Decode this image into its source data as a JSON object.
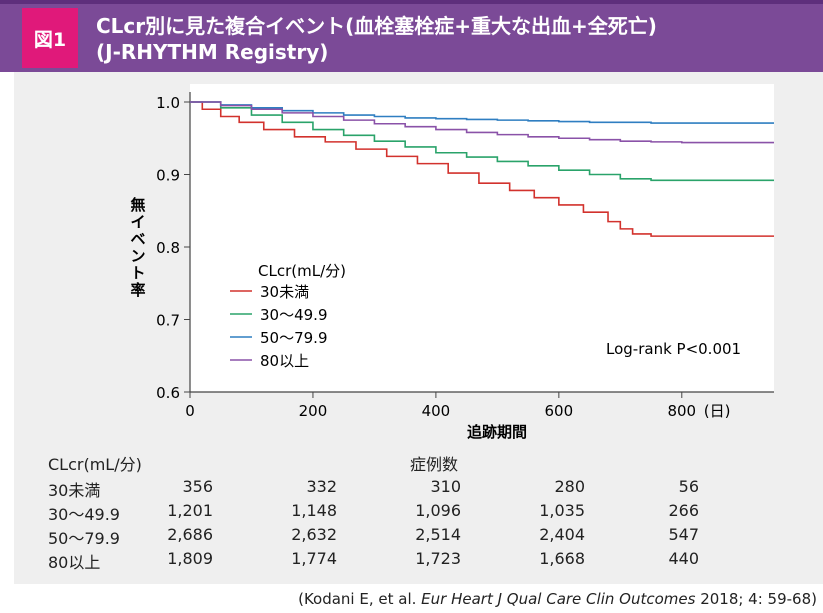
{
  "header": {
    "badge": "図1",
    "title_line1": "CLcr別に見た複合イベント(血栓塞栓症+重大な出血+全死亡)",
    "title_line2": "(J-RHYTHM Registry)"
  },
  "chart_data": {
    "type": "line",
    "xlabel": "追跡期間",
    "ylabel": "無イベント率",
    "x_unit": "(日)",
    "xlim": [
      0,
      950
    ],
    "ylim": [
      0.6,
      1.0
    ],
    "x_ticks": [
      0,
      200,
      400,
      600,
      800
    ],
    "y_ticks": [
      0.6,
      0.7,
      0.8,
      0.9,
      1.0
    ],
    "y_tick_labels": [
      "0.6",
      "0.7",
      "0.8",
      "0.9",
      "1.0"
    ],
    "legend_title": "CLcr(mL/分)",
    "annotation": "Log-rank P<0.001",
    "series": [
      {
        "name": "30未満",
        "color": "#d2322d",
        "x": [
          0,
          20,
          50,
          80,
          120,
          170,
          220,
          270,
          320,
          370,
          420,
          470,
          520,
          560,
          600,
          640,
          680,
          700,
          720,
          750,
          800,
          850,
          900,
          950
        ],
        "y": [
          1.0,
          0.99,
          0.98,
          0.972,
          0.962,
          0.952,
          0.945,
          0.935,
          0.925,
          0.915,
          0.902,
          0.888,
          0.878,
          0.868,
          0.858,
          0.848,
          0.835,
          0.825,
          0.818,
          0.815,
          0.815,
          0.815,
          0.815,
          0.815
        ]
      },
      {
        "name": "30〜49.9",
        "color": "#2aa36a",
        "x": [
          0,
          50,
          100,
          150,
          200,
          250,
          300,
          350,
          400,
          450,
          500,
          550,
          600,
          650,
          700,
          750,
          800,
          850,
          900,
          950
        ],
        "y": [
          1.0,
          0.992,
          0.982,
          0.972,
          0.962,
          0.954,
          0.946,
          0.938,
          0.93,
          0.924,
          0.918,
          0.912,
          0.906,
          0.9,
          0.894,
          0.892,
          0.892,
          0.892,
          0.892,
          0.892
        ]
      },
      {
        "name": "50〜79.9",
        "color": "#2f7ec1",
        "x": [
          0,
          50,
          100,
          150,
          200,
          250,
          300,
          350,
          400,
          450,
          500,
          550,
          600,
          650,
          700,
          750,
          800,
          850,
          900,
          950
        ],
        "y": [
          1.0,
          0.996,
          0.992,
          0.988,
          0.985,
          0.982,
          0.98,
          0.978,
          0.977,
          0.976,
          0.975,
          0.974,
          0.973,
          0.972,
          0.972,
          0.971,
          0.971,
          0.971,
          0.971,
          0.971
        ]
      },
      {
        "name": "80以上",
        "color": "#8a52a8",
        "x": [
          0,
          50,
          100,
          150,
          200,
          250,
          300,
          350,
          400,
          450,
          500,
          550,
          600,
          650,
          700,
          750,
          800,
          850,
          900,
          950
        ],
        "y": [
          1.0,
          0.995,
          0.99,
          0.985,
          0.98,
          0.975,
          0.97,
          0.966,
          0.962,
          0.958,
          0.955,
          0.952,
          0.95,
          0.948,
          0.946,
          0.945,
          0.944,
          0.944,
          0.944,
          0.944
        ]
      }
    ]
  },
  "at_risk": {
    "header": "CLcr(mL/分)",
    "cases_label": "症例数",
    "rows": [
      {
        "label": "30未満",
        "values": [
          "356",
          "332",
          "310",
          "280",
          "56"
        ]
      },
      {
        "label": "30〜49.9",
        "values": [
          "1,201",
          "1,148",
          "1,096",
          "1,035",
          "266"
        ]
      },
      {
        "label": "50〜79.9",
        "values": [
          "2,686",
          "2,632",
          "2,514",
          "2,404",
          "547"
        ]
      },
      {
        "label": "80以上",
        "values": [
          "1,809",
          "1,774",
          "1,723",
          "1,668",
          "440"
        ]
      }
    ]
  },
  "citation": {
    "prefix": "(Kodani E, et al. ",
    "journal": "Eur Heart J Qual Care Clin Outcomes",
    "suffix": " 2018; 4: 59-68)"
  }
}
